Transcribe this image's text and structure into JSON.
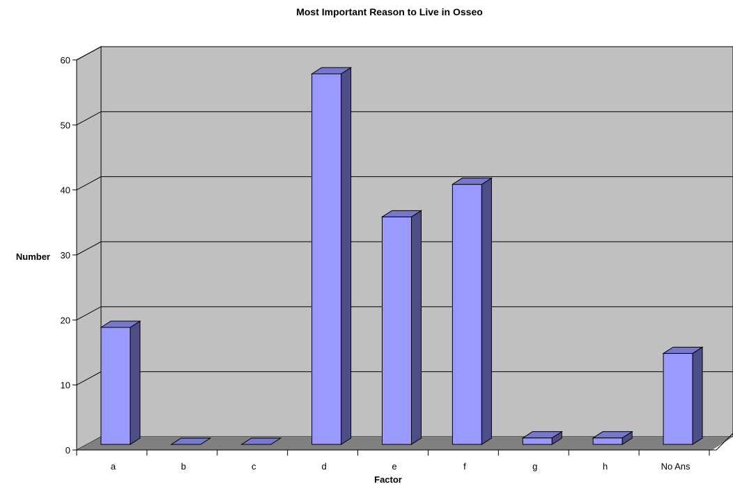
{
  "chart_data": {
    "type": "bar",
    "title": "Most Important Reason to Live in Osseo",
    "xlabel": "Factor",
    "ylabel": "Number",
    "categories": [
      "a",
      "b",
      "c",
      "d",
      "e",
      "f",
      "g",
      "h",
      "No Ans"
    ],
    "values": [
      18,
      0,
      0,
      57,
      35,
      40,
      1,
      1,
      14
    ],
    "ylim": [
      0,
      60
    ],
    "yticks": [
      0,
      10,
      20,
      30,
      40,
      50,
      60
    ],
    "grid": true,
    "legend": "none",
    "style": "3d-column"
  },
  "colors": {
    "bar_front": "#9999ff",
    "bar_side": "#4d4d88",
    "bar_top": "#7777cc",
    "wall": "#c0c0c0",
    "floor": "#808080",
    "grid": "#000000"
  }
}
